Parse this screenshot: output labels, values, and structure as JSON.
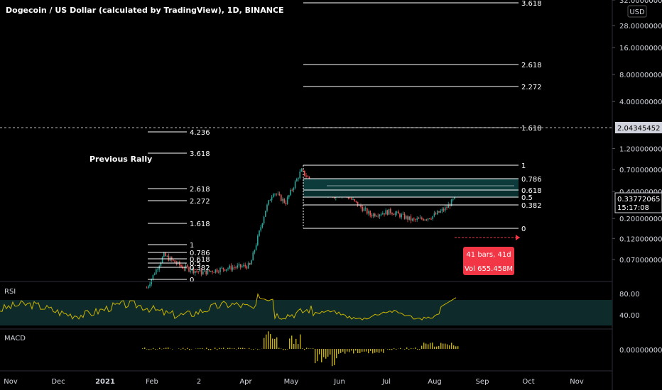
{
  "title": "Dogecoin / US Dollar (calculated by TradingView), 1D, BINANCE",
  "currency_badge": "USD",
  "annotation_previous_rally": "Previous Rally",
  "measure_box": {
    "line1": "41 bars, 41d",
    "line2": "Vol 655.458M"
  },
  "last_price": {
    "value": "0.33772065",
    "countdown": "15:17:08"
  },
  "crosshair_price": "2.04345452",
  "colors": {
    "up": "#26a69a",
    "down": "#ef5350",
    "rsi": "#c8b400",
    "macd": "#c8b400",
    "badge": "#f23645",
    "fib": "#ffffff",
    "fib_zone": "#1c6b6b"
  },
  "chart_data": [
    {
      "type": "candlestick",
      "title": "Dogecoin / US Dollar (calculated by TradingView), 1D, BINANCE",
      "scale": "log",
      "y_tick_labels": [
        "32.00000000",
        "28.00000000",
        "16.00000000",
        "8.00000000",
        "4.00000000",
        "1.20000000",
        "0.70000000",
        "0.40000000",
        "0.20000000",
        "0.12000000",
        "0.07000000"
      ],
      "x_tick_labels": [
        "Nov",
        "Dec",
        "2021",
        "Feb",
        "2",
        "Apr",
        "May",
        "Jun",
        "Jul",
        "Aug",
        "Sep",
        "Oct",
        "Nov"
      ],
      "ohlc_points": [
        {
          "date": "2021-01-28",
          "close": 0.034
        },
        {
          "date": "2021-02-08",
          "close": 0.078
        },
        {
          "date": "2021-02-20",
          "close": 0.058
        },
        {
          "date": "2021-03-05",
          "close": 0.05
        },
        {
          "date": "2021-03-20",
          "close": 0.056
        },
        {
          "date": "2021-04-05",
          "close": 0.06
        },
        {
          "date": "2021-04-15",
          "close": 0.25
        },
        {
          "date": "2021-04-20",
          "close": 0.4
        },
        {
          "date": "2021-04-28",
          "close": 0.3
        },
        {
          "date": "2021-05-08",
          "close": 0.68
        },
        {
          "date": "2021-05-15",
          "close": 0.52
        },
        {
          "date": "2021-05-25",
          "close": 0.35
        },
        {
          "date": "2021-06-05",
          "close": 0.38
        },
        {
          "date": "2021-06-22",
          "close": 0.22
        },
        {
          "date": "2021-07-05",
          "close": 0.24
        },
        {
          "date": "2021-07-20",
          "close": 0.19
        },
        {
          "date": "2021-08-01",
          "close": 0.21
        },
        {
          "date": "2021-08-10",
          "close": 0.26
        },
        {
          "date": "2021-08-16",
          "close": 0.3377
        }
      ],
      "fib_levels_main": [
        "3.618",
        "2.618",
        "2.272",
        "1.618",
        "1",
        "0.786",
        "0.618",
        "0.5",
        "0.382",
        "0"
      ],
      "fib_levels_previous": [
        "4.236",
        "3.618",
        "2.618",
        "2.272",
        "1.618",
        "1",
        "0.786",
        "0.618",
        "0.5",
        "0.382",
        "0"
      ]
    },
    {
      "type": "line",
      "title": "RSI",
      "y_tick_labels": [
        "80.00",
        "40.00"
      ]
    },
    {
      "type": "bar",
      "title": "MACD",
      "y_tick_labels": [
        "0.00000000"
      ]
    }
  ]
}
